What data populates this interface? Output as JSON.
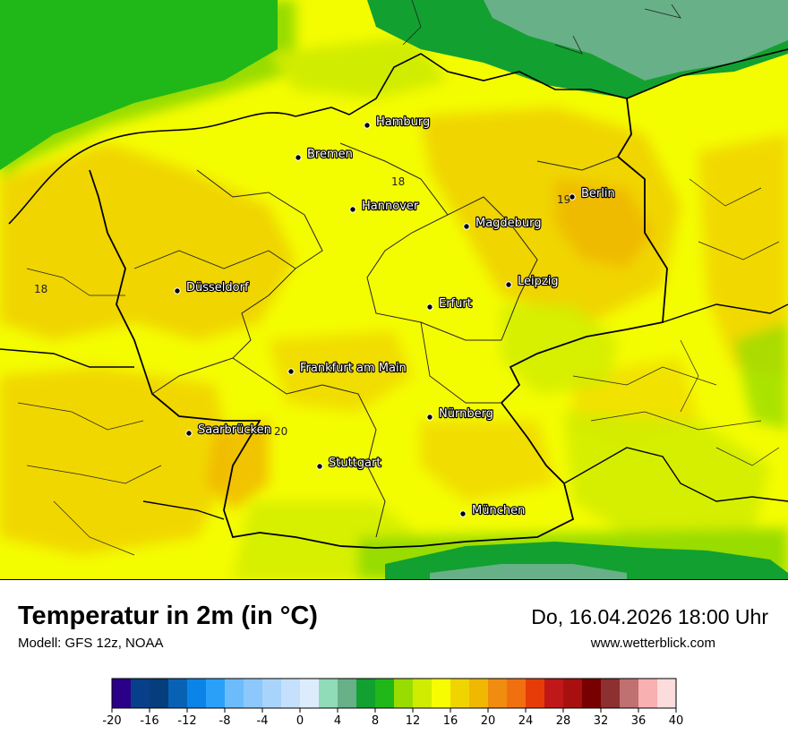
{
  "title": "Temperatur in 2m (in °C)",
  "model": "Modell: GFS 12z, NOAA",
  "datetime": "Do, 16.04.2026 18:00 Uhr",
  "website": "www.wetterblick.com",
  "cities": [
    {
      "name": "Hamburg"
    },
    {
      "name": "Bremen"
    },
    {
      "name": "Berlin"
    },
    {
      "name": "Hannover"
    },
    {
      "name": "Magdeburg"
    },
    {
      "name": "Leipzig"
    },
    {
      "name": "Düsseldorf"
    },
    {
      "name": "Erfurt"
    },
    {
      "name": "Frankfurt am Main"
    },
    {
      "name": "Nürnberg"
    },
    {
      "name": "Saarbrücken"
    },
    {
      "name": "Stuttgart"
    },
    {
      "name": "München"
    }
  ],
  "isolines": [
    "18",
    "18",
    "19",
    "20"
  ],
  "legend": {
    "colors": [
      "#2a0088",
      "#083f8a",
      "#063d7c",
      "#0862b4",
      "#0a84e8",
      "#2aa0f8",
      "#6cbcfc",
      "#8cc8fc",
      "#a8d4fc",
      "#c4e0fc",
      "#dcecfc",
      "#90dcb8",
      "#68b088",
      "#12a030",
      "#20b818",
      "#98dc00",
      "#d0ec00",
      "#f8fc00",
      "#f0d400",
      "#f0b800",
      "#f08c10",
      "#f07010",
      "#e83c08",
      "#c01818",
      "#a81010",
      "#780000",
      "#8c3030",
      "#c07070",
      "#f8b0b0",
      "#fcdcdc"
    ],
    "ticks": [
      "-20",
      "-16",
      "-12",
      "-8",
      "-4",
      "0",
      "4",
      "8",
      "12",
      "16",
      "20",
      "24",
      "28",
      "32",
      "36",
      "40"
    ]
  }
}
